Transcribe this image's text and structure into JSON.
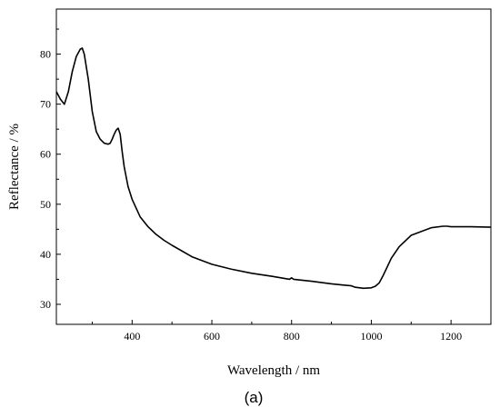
{
  "chart_data": {
    "type": "line",
    "xlabel": "Wavelength / nm",
    "ylabel": "Reflectance / %",
    "caption": "(a)",
    "xlim": [
      210,
      1300
    ],
    "ylim": [
      26,
      89
    ],
    "x_ticks": [
      400,
      600,
      800,
      1000,
      1200
    ],
    "y_ticks": [
      30,
      40,
      50,
      60,
      70,
      80
    ],
    "grid": false,
    "legend": "none",
    "line_color": "#000000",
    "series": [
      {
        "x": [
          210,
          220,
          230,
          240,
          250,
          260,
          270,
          275,
          280,
          290,
          300,
          310,
          320,
          330,
          340,
          345,
          350,
          355,
          360,
          365,
          370,
          375,
          380,
          390,
          400,
          420,
          440,
          460,
          480,
          500,
          550,
          600,
          650,
          700,
          750,
          795,
          800,
          805,
          850,
          900,
          950,
          960,
          980,
          1000,
          1010,
          1020,
          1030,
          1040,
          1050,
          1070,
          1100,
          1150,
          1180,
          1190,
          1200,
          1250,
          1300
        ],
        "y": [
          72.5,
          71.0,
          70.0,
          72.5,
          76.5,
          79.5,
          81.0,
          81.2,
          80.0,
          75.0,
          68.5,
          64.5,
          63.0,
          62.2,
          62.0,
          62.2,
          63.0,
          64.0,
          64.8,
          65.2,
          64.0,
          60.5,
          57.5,
          53.5,
          51.0,
          47.5,
          45.5,
          44.0,
          42.8,
          41.8,
          39.5,
          38.0,
          37.0,
          36.2,
          35.6,
          35.0,
          35.3,
          35.0,
          34.6,
          34.1,
          33.7,
          33.4,
          33.2,
          33.3,
          33.6,
          34.3,
          35.8,
          37.5,
          39.2,
          41.5,
          43.8,
          45.3,
          45.6,
          45.6,
          45.5,
          45.5,
          45.4
        ]
      }
    ]
  }
}
